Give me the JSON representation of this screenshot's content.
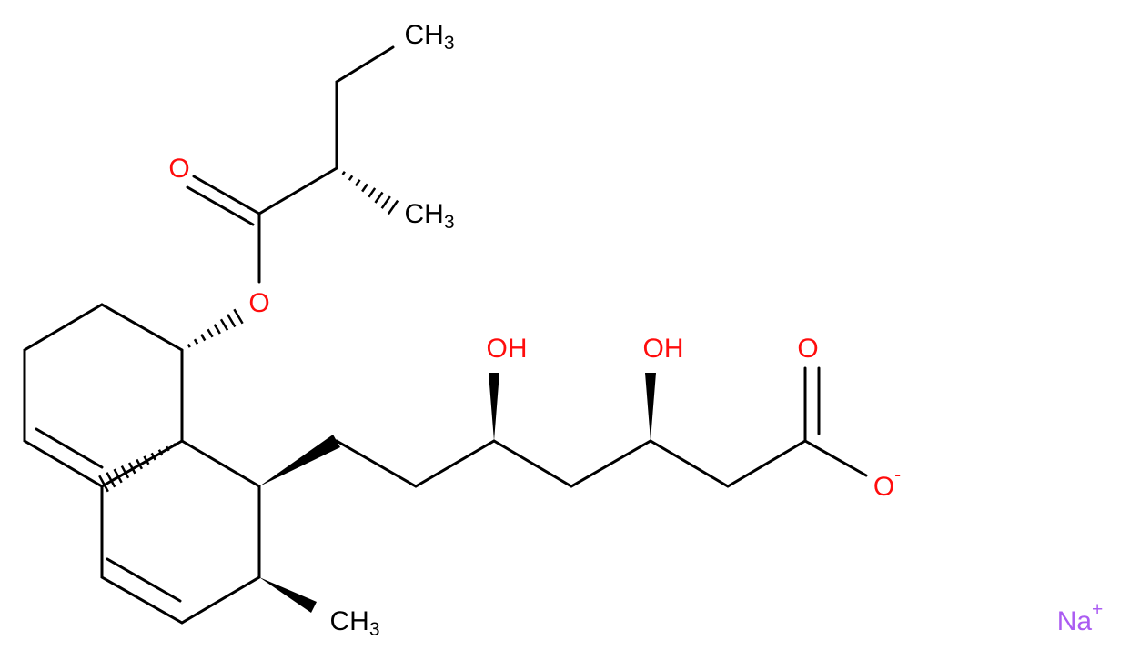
{
  "atoms": [
    {
      "text": "CH",
      "sub": "3"
    },
    {
      "text": "O"
    },
    {
      "text": "CH",
      "sub": "3"
    },
    {
      "text": "O"
    },
    {
      "text": "OH"
    },
    {
      "text": "OH"
    },
    {
      "text": "O"
    },
    {
      "text": "O",
      "sup": "-"
    },
    {
      "text": "CH",
      "sub": "3"
    },
    {
      "text": "Na",
      "sup": "+"
    }
  ]
}
